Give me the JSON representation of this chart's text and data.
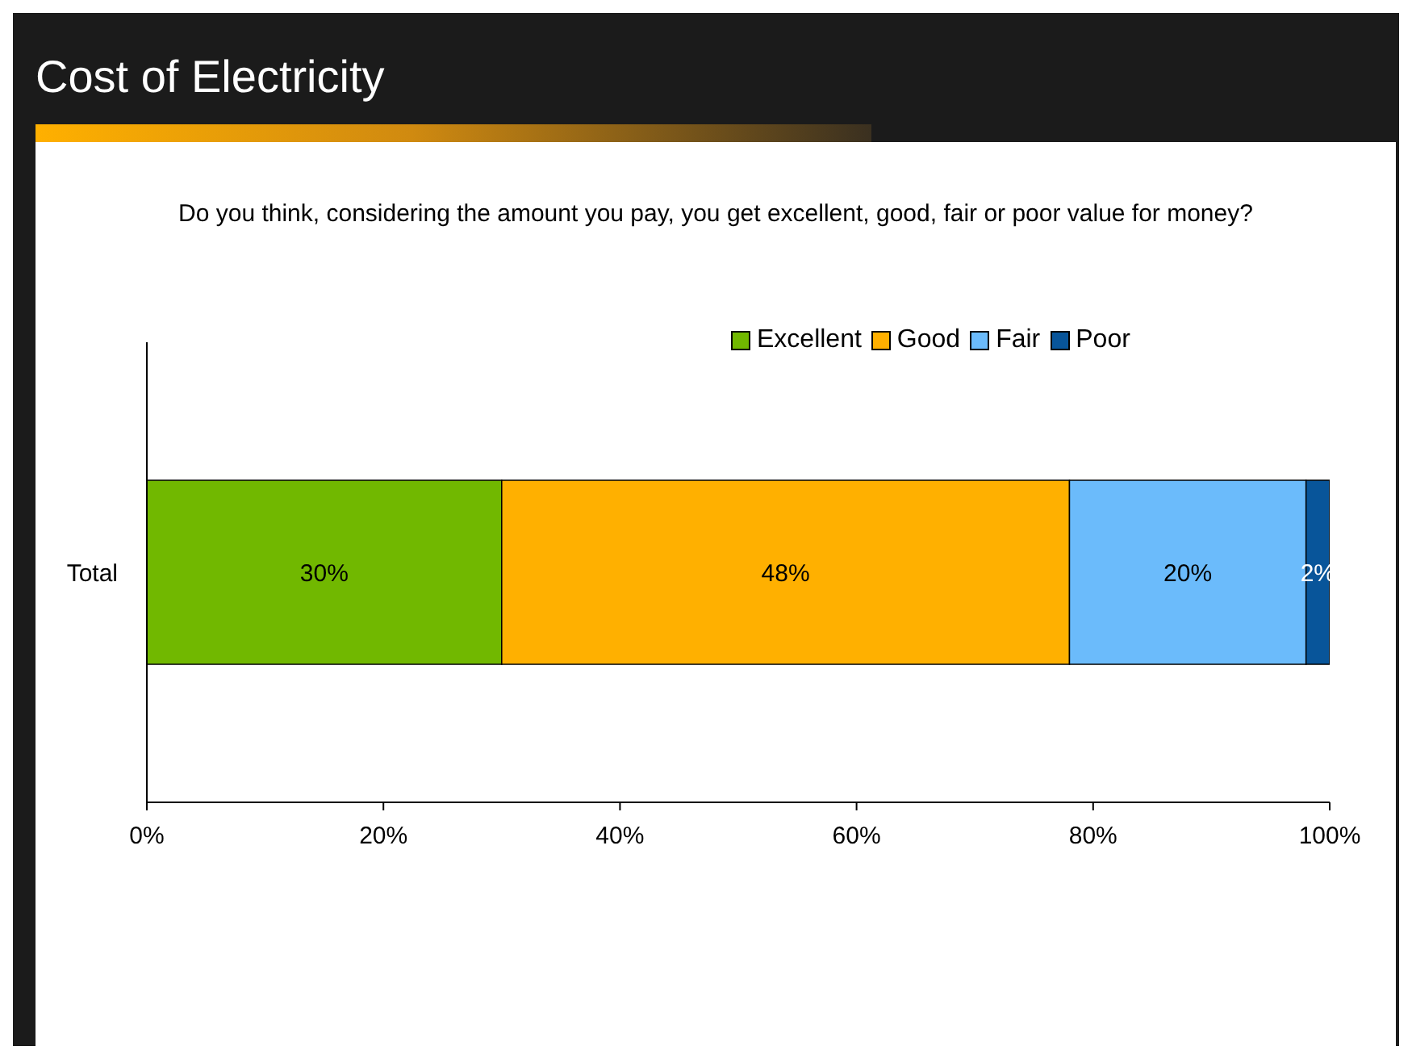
{
  "chart_data": {
    "type": "bar",
    "orientation": "horizontal",
    "stacked": true,
    "title": "Cost of Electricity",
    "subtitle": "Do you think, considering the amount you pay, you get excellent, good, fair or poor value for money?",
    "categories": [
      "Total"
    ],
    "series": [
      {
        "name": "Excellent",
        "color": "#71b800",
        "values": [
          30
        ],
        "value_labels": [
          "30%"
        ]
      },
      {
        "name": "Good",
        "color": "#ffb000",
        "values": [
          48
        ],
        "value_labels": [
          "48%"
        ]
      },
      {
        "name": "Fair",
        "color": "#6bbbfb",
        "values": [
          20
        ],
        "value_labels": [
          "20%"
        ]
      },
      {
        "name": "Poor",
        "color": "#08559a",
        "values": [
          2
        ],
        "value_labels": [
          "2%"
        ]
      }
    ],
    "xlim": [
      0,
      100
    ],
    "xticks": [
      {
        "value": 0,
        "label": "0%"
      },
      {
        "value": 20,
        "label": "20%"
      },
      {
        "value": 40,
        "label": "40%"
      },
      {
        "value": 60,
        "label": "60%"
      },
      {
        "value": 80,
        "label": "80%"
      },
      {
        "value": 100,
        "label": "100%"
      }
    ],
    "legend": "top right"
  }
}
